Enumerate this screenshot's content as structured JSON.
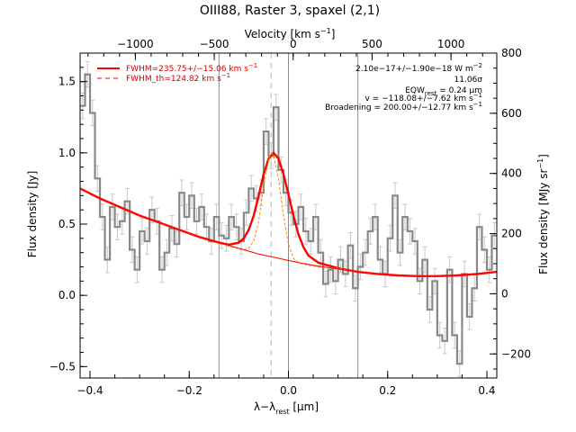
{
  "chart_data": {
    "type": "line",
    "title": "OIII88, Raster 3, spaxel (2,1)",
    "xlabel": "λ−λ_rest [μm]",
    "xlabel_parts": {
      "main": "λ−λ",
      "sub": "rest",
      "unit": " [μm]"
    },
    "ylabel": "Flux density [Jy]",
    "top_xlabel": "Velocity [km s⁻¹]",
    "top_xlabel_parts": {
      "main": "Velocity [km s",
      "sup": "−1",
      "close": "]"
    },
    "right_ylabel": "Flux density [MJy sr⁻¹]",
    "right_ylabel_parts": {
      "main": "Flux density [MJy sr",
      "sup": "−1",
      "close": "]"
    },
    "xlim": [
      -0.42,
      0.42
    ],
    "ylim": [
      -0.58,
      1.7
    ],
    "top_xlim": [
      -1350,
      1290
    ],
    "right_ylim": [
      -280,
      800
    ],
    "x_ticks": [
      -0.4,
      -0.2,
      0.0,
      0.2,
      0.4
    ],
    "x_tick_labels": [
      "−0.4",
      "−0.2",
      "0.0",
      "0.2",
      "0.4"
    ],
    "y_ticks": [
      -0.5,
      0.0,
      0.5,
      1.0,
      1.5
    ],
    "y_tick_labels": [
      "−0.5",
      "0.0",
      "0.5",
      "1.0",
      "1.5"
    ],
    "top_ticks": [
      -1000,
      -500,
      0,
      500,
      1000
    ],
    "top_tick_labels": [
      "−1000",
      "−500",
      "0",
      "500",
      "1000"
    ],
    "right_ticks": [
      -200,
      0,
      200,
      400,
      600,
      800
    ],
    "right_tick_labels": [
      "−200",
      "0",
      "200",
      "400",
      "600",
      "800"
    ],
    "vertical_lines_solid": [
      -0.14,
      0.0,
      0.14
    ],
    "vertical_line_dashed": -0.035,
    "series": [
      {
        "name": "",
        "style": "step-with-errorbars",
        "color": "#888888",
        "x": [
          -0.415,
          -0.405,
          -0.395,
          -0.385,
          -0.375,
          -0.365,
          -0.355,
          -0.345,
          -0.335,
          -0.325,
          -0.315,
          -0.305,
          -0.295,
          -0.285,
          -0.275,
          -0.265,
          -0.255,
          -0.245,
          -0.235,
          -0.225,
          -0.215,
          -0.205,
          -0.195,
          -0.185,
          -0.175,
          -0.165,
          -0.155,
          -0.145,
          -0.135,
          -0.125,
          -0.115,
          -0.105,
          -0.095,
          -0.085,
          -0.075,
          -0.065,
          -0.055,
          -0.045,
          -0.035,
          -0.025,
          -0.015,
          -0.005,
          0.005,
          0.015,
          0.025,
          0.035,
          0.045,
          0.055,
          0.065,
          0.075,
          0.085,
          0.095,
          0.105,
          0.115,
          0.125,
          0.135,
          0.145,
          0.155,
          0.165,
          0.175,
          0.185,
          0.195,
          0.205,
          0.215,
          0.225,
          0.235,
          0.245,
          0.255,
          0.265,
          0.275,
          0.285,
          0.295,
          0.305,
          0.315,
          0.325,
          0.335,
          0.345,
          0.355,
          0.365,
          0.375,
          0.385,
          0.395,
          0.405,
          0.415
        ],
        "y": [
          1.33,
          1.55,
          1.28,
          0.82,
          0.55,
          0.25,
          0.62,
          0.48,
          0.52,
          0.66,
          0.32,
          0.18,
          0.45,
          0.38,
          0.6,
          0.52,
          0.18,
          0.3,
          0.47,
          0.36,
          0.72,
          0.55,
          0.7,
          0.52,
          0.62,
          0.48,
          0.38,
          0.55,
          0.42,
          0.4,
          0.55,
          0.48,
          0.38,
          0.58,
          0.75,
          0.68,
          0.72,
          1.15,
          0.98,
          1.32,
          0.88,
          0.72,
          0.58,
          0.5,
          0.62,
          0.45,
          0.38,
          0.55,
          0.3,
          0.08,
          0.18,
          0.1,
          0.25,
          0.15,
          0.35,
          0.05,
          0.2,
          0.3,
          0.45,
          0.55,
          0.25,
          0.15,
          0.4,
          0.7,
          0.3,
          0.55,
          0.45,
          0.38,
          0.1,
          0.25,
          -0.1,
          0.1,
          -0.28,
          -0.32,
          0.18,
          -0.28,
          -0.48,
          0.15,
          -0.15,
          0.05,
          0.48,
          0.32,
          0.18,
          0.42
        ],
        "yerr": 0.09
      },
      {
        "name": "FWHM=235.75+/−15.06 km s⁻¹",
        "style": "solid-thick",
        "color": "#ff0000",
        "x": [
          -0.42,
          -0.38,
          -0.34,
          -0.3,
          -0.26,
          -0.22,
          -0.18,
          -0.14,
          -0.12,
          -0.1,
          -0.09,
          -0.08,
          -0.07,
          -0.06,
          -0.05,
          -0.04,
          -0.03,
          -0.02,
          -0.01,
          0.0,
          0.01,
          0.02,
          0.03,
          0.04,
          0.06,
          0.1,
          0.14,
          0.18,
          0.22,
          0.26,
          0.3,
          0.34,
          0.38,
          0.42
        ],
        "y": [
          0.75,
          0.68,
          0.62,
          0.56,
          0.51,
          0.46,
          0.41,
          0.37,
          0.355,
          0.37,
          0.4,
          0.46,
          0.56,
          0.7,
          0.85,
          0.96,
          1.0,
          0.96,
          0.85,
          0.71,
          0.56,
          0.43,
          0.34,
          0.28,
          0.23,
          0.19,
          0.165,
          0.15,
          0.14,
          0.135,
          0.135,
          0.14,
          0.15,
          0.165
        ]
      },
      {
        "name": "FWHM_th=124.82 km s⁻¹",
        "style": "dashed",
        "color": "#ff8c00",
        "x": [
          -0.42,
          -0.38,
          -0.34,
          -0.3,
          -0.26,
          -0.22,
          -0.18,
          -0.14,
          -0.12,
          -0.1,
          -0.09,
          -0.08,
          -0.07,
          -0.06,
          -0.05,
          -0.04,
          -0.035,
          -0.03,
          -0.02,
          -0.01,
          0.0,
          0.01,
          0.02,
          0.04,
          0.06,
          0.1,
          0.14,
          0.18,
          0.22,
          0.26,
          0.3,
          0.34,
          0.38,
          0.42
        ],
        "y": [
          0.75,
          0.68,
          0.62,
          0.56,
          0.51,
          0.46,
          0.41,
          0.37,
          0.345,
          0.325,
          0.32,
          0.33,
          0.38,
          0.52,
          0.76,
          0.95,
          1.0,
          0.98,
          0.82,
          0.56,
          0.36,
          0.26,
          0.23,
          0.21,
          0.2,
          0.19,
          0.165,
          0.15,
          0.14,
          0.135,
          0.135,
          0.14,
          0.15,
          0.165
        ]
      },
      {
        "name": "",
        "style": "solid-thin",
        "color": "#ff0000",
        "x": [
          -0.42,
          -0.38,
          -0.34,
          -0.3,
          -0.26,
          -0.22,
          -0.18,
          -0.14,
          -0.1,
          -0.06,
          -0.02,
          0.02,
          0.06,
          0.1,
          0.14,
          0.18,
          0.22,
          0.26,
          0.3,
          0.34,
          0.38,
          0.42
        ],
        "y": [
          0.75,
          0.68,
          0.62,
          0.56,
          0.51,
          0.46,
          0.41,
          0.37,
          0.33,
          0.29,
          0.26,
          0.23,
          0.205,
          0.185,
          0.165,
          0.15,
          0.14,
          0.135,
          0.135,
          0.14,
          0.15,
          0.165
        ]
      }
    ],
    "legend": {
      "placement": "top-left",
      "entries": [
        {
          "label": "FWHM=235.75+/−15.06 km s⁻¹",
          "label_parts": {
            "main": "FWHM=235.75+/−15.06 km s",
            "sup": "−1"
          },
          "style": "solid"
        },
        {
          "label": "FWHM_th=124.82 km s⁻¹",
          "label_parts": {
            "main": "FWHM_th=124.82 km s",
            "sup": "−1"
          },
          "style": "dashed"
        }
      ]
    },
    "annotations": {
      "placement": "top-right",
      "lines": [
        {
          "text": "2.10e−17+/−1.90e−18 W m⁻²",
          "parts": {
            "main": "2.10e−17+/−1.90e−18 W m",
            "sup": "−2"
          }
        },
        {
          "text": "11.06σ",
          "parts": {
            "main": "11.06σ"
          }
        },
        {
          "text": "EQW_rest = 0.24 μm",
          "parts": {
            "main": "EQW",
            "sub": "rest",
            "tail": " = 0.24 μm"
          }
        },
        {
          "text": "v = −118.08+/−7.62 km s⁻¹",
          "parts": {
            "main": "v = −118.08+/−7.62 km s",
            "sup": "−1"
          }
        },
        {
          "text": "Broadening = 200.00+/−12.77 km s⁻¹",
          "parts": {
            "main": "Broadening = 200.00+/−12.77 km s",
            "sup": "−1"
          }
        }
      ]
    }
  }
}
